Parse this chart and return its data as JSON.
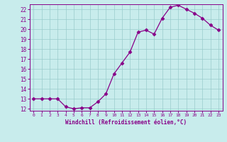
{
  "x": [
    0,
    1,
    2,
    3,
    4,
    5,
    6,
    7,
    8,
    9,
    10,
    11,
    12,
    13,
    14,
    15,
    16,
    17,
    18,
    19,
    20,
    21,
    22,
    23
  ],
  "y": [
    13.0,
    13.0,
    13.0,
    13.0,
    12.2,
    12.0,
    12.1,
    12.1,
    12.7,
    13.5,
    15.5,
    16.6,
    17.7,
    19.7,
    19.9,
    19.5,
    21.1,
    22.2,
    22.4,
    22.0,
    21.6,
    21.1,
    20.4,
    19.9
  ],
  "ylim": [
    11.8,
    22.5
  ],
  "yticks": [
    12,
    13,
    14,
    15,
    16,
    17,
    18,
    19,
    20,
    21,
    22
  ],
  "xlabel": "Windchill (Refroidissement éolien,°C)",
  "line_color": "#880088",
  "marker": "D",
  "marker_size": 2.5,
  "bg_color": "#c8ecec",
  "grid_color": "#99cccc",
  "axis_color": "#880088",
  "tick_color": "#880088",
  "label_color": "#880088",
  "title_color": "#880088"
}
